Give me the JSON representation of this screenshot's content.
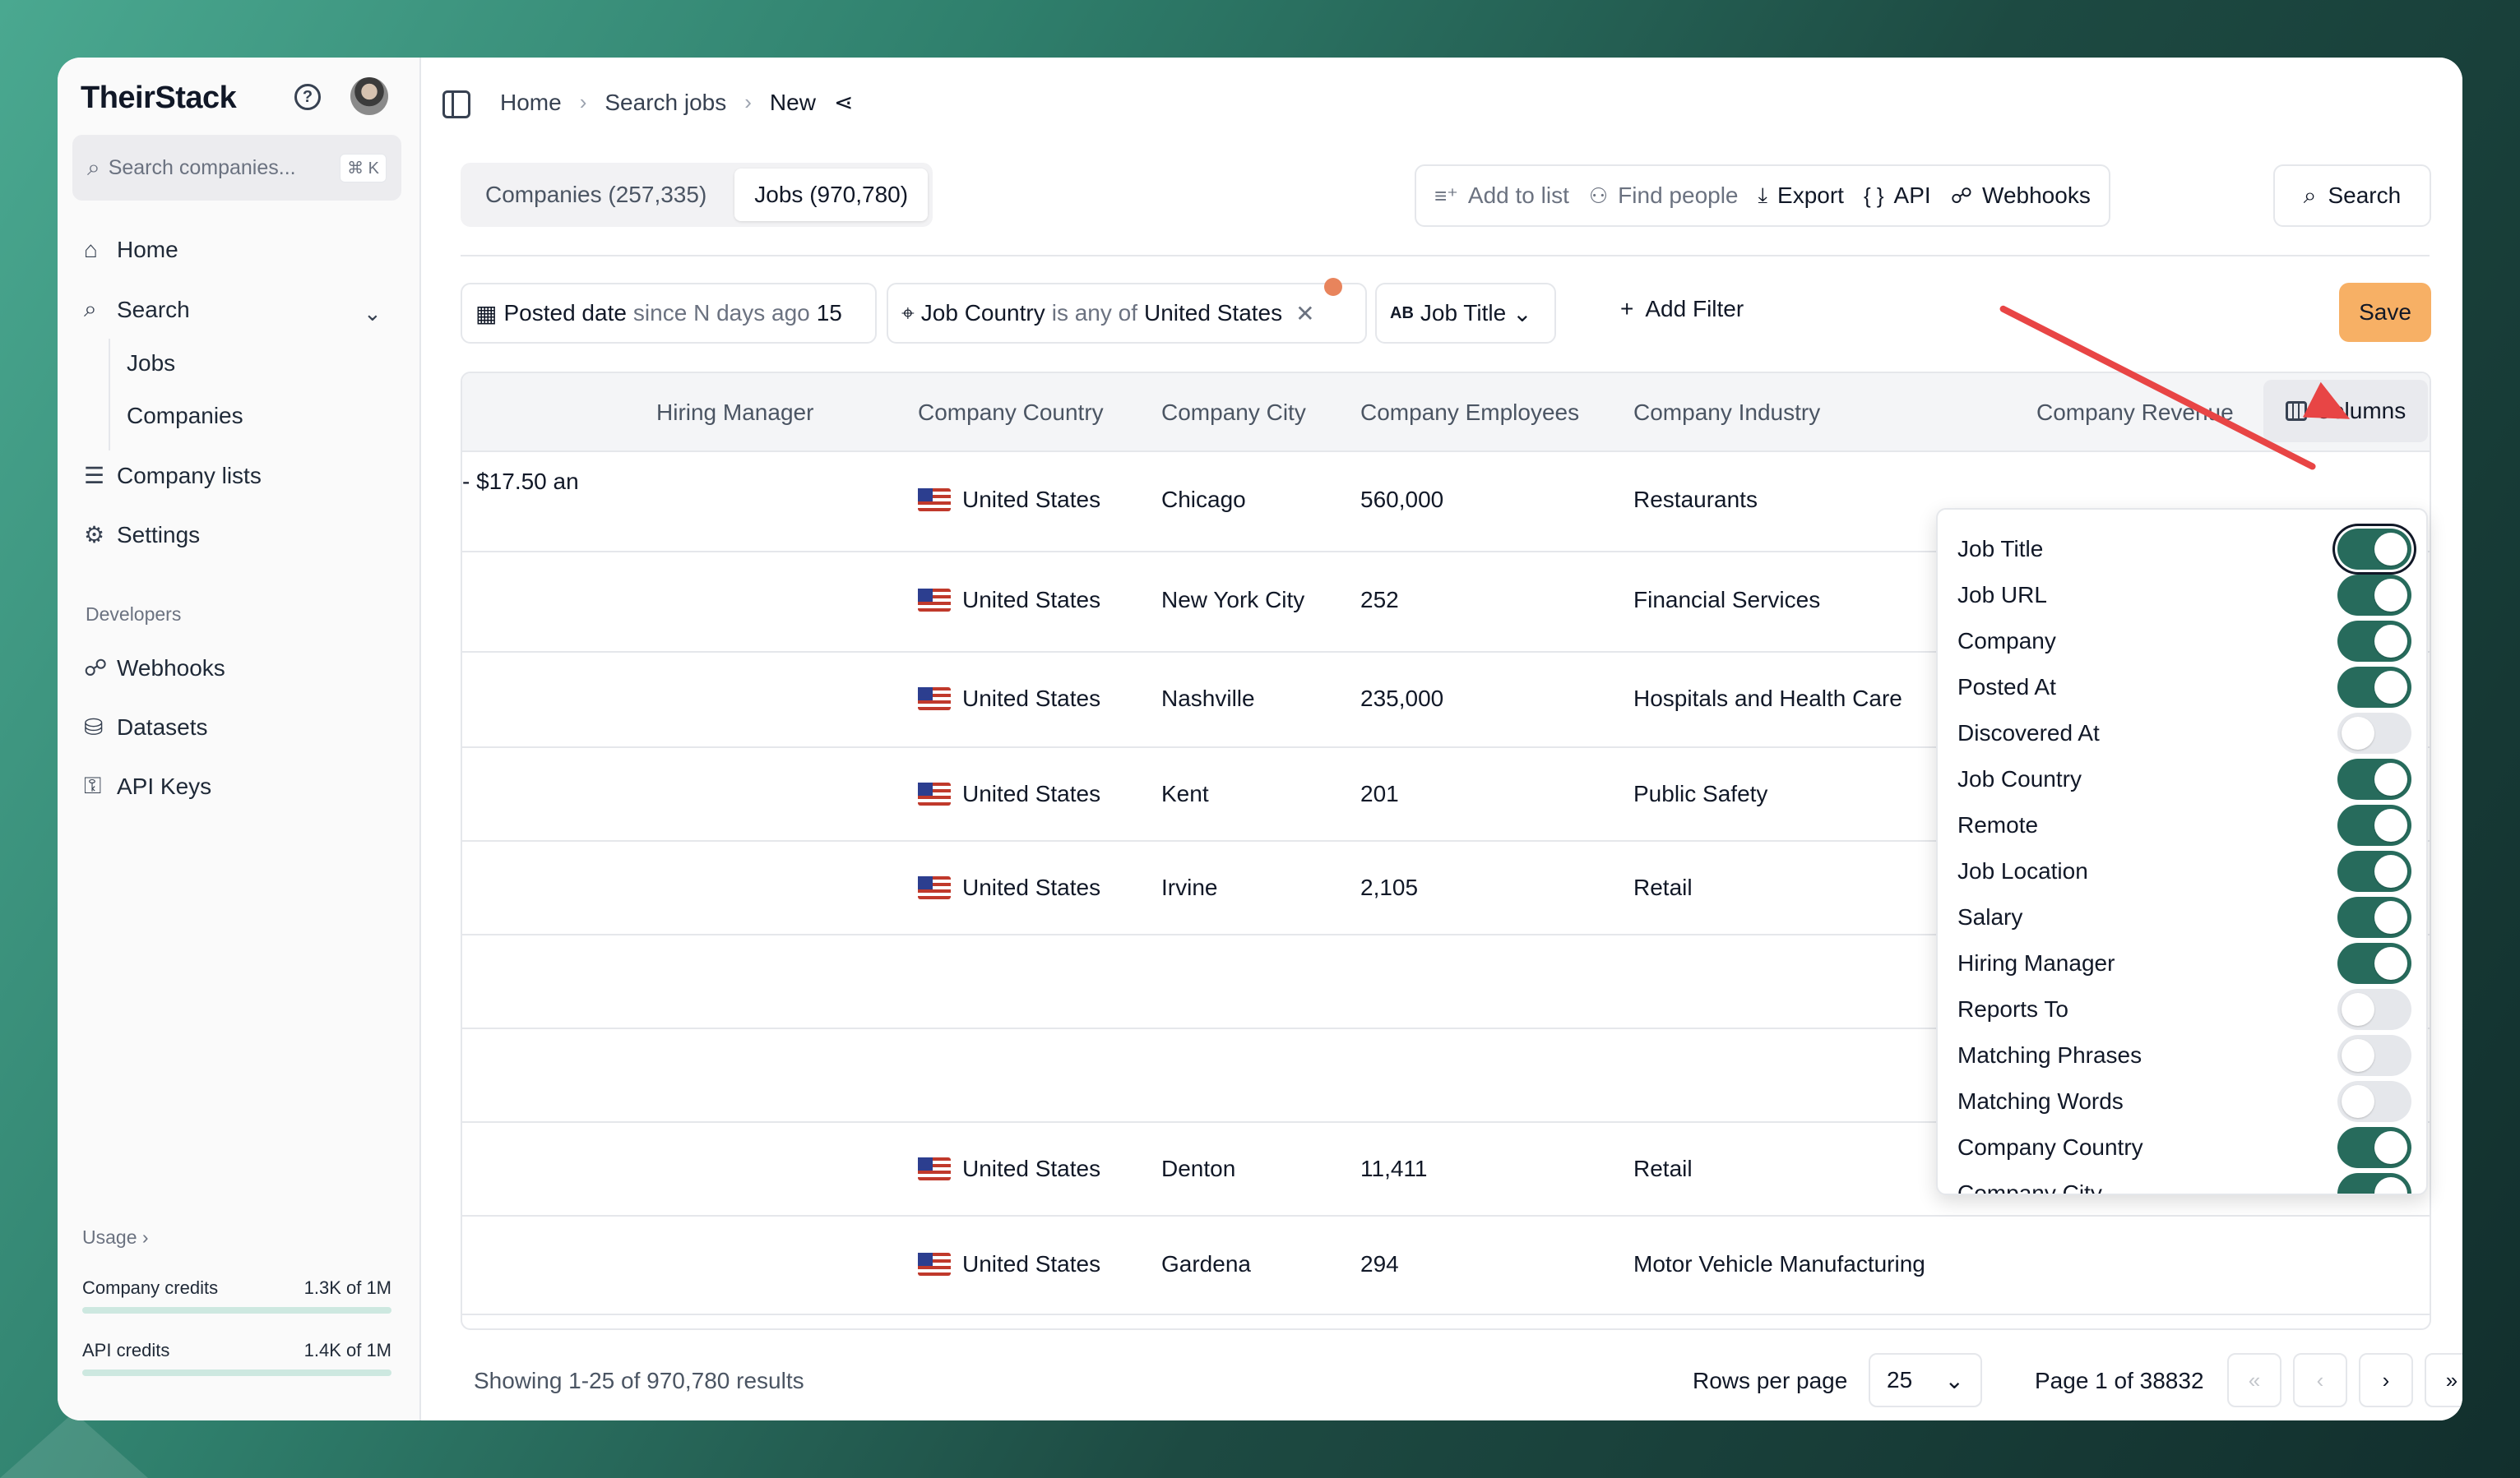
{
  "sidebar": {
    "brand": "TheirStack",
    "search_placeholder": "Search companies...",
    "search_shortcut": "⌘ K",
    "nav": {
      "home": "Home",
      "search": "Search",
      "jobs": "Jobs",
      "companies": "Companies",
      "company_lists": "Company lists",
      "settings": "Settings"
    },
    "developers_label": "Developers",
    "dev_nav": {
      "webhooks": "Webhooks",
      "datasets": "Datasets",
      "api_keys": "API Keys"
    },
    "usage_label": "Usage",
    "credits": [
      {
        "label": "Company credits",
        "value": "1.3K of 1M"
      },
      {
        "label": "API credits",
        "value": "1.4K of 1M"
      }
    ]
  },
  "breadcrumb": [
    "Home",
    "Search jobs",
    "New"
  ],
  "tabs": [
    {
      "label": "Companies (257,335)"
    },
    {
      "label": "Jobs (970,780)"
    }
  ],
  "actions": {
    "add_to_list": "Add to list",
    "find_people": "Find people",
    "export": "Export",
    "api": "API",
    "webhooks": "Webhooks",
    "search": "Search"
  },
  "filters": {
    "posted": {
      "field": "Posted date",
      "op": "since N days ago",
      "value": "15"
    },
    "country": {
      "field": "Job Country",
      "op": "is any of",
      "value": "United States"
    },
    "job_title": "Job Title",
    "add_filter": "Add Filter",
    "save": "Save"
  },
  "table": {
    "headers": [
      "Hiring Manager",
      "Company Country",
      "Company City",
      "Company Employees",
      "Company Industry",
      "Company Revenue"
    ],
    "columns_button": "Columns",
    "partial_cell": "- $17.50 an",
    "rows": [
      {
        "country": "United States",
        "city": "Chicago",
        "employees": "560,000",
        "industry": "Restaurants"
      },
      {
        "country": "United States",
        "city": "New York City",
        "employees": "252",
        "industry": "Financial Services"
      },
      {
        "country": "United States",
        "city": "Nashville",
        "employees": "235,000",
        "industry": "Hospitals and Health Care"
      },
      {
        "country": "United States",
        "city": "Kent",
        "employees": "201",
        "industry": "Public Safety"
      },
      {
        "country": "United States",
        "city": "Irvine",
        "employees": "2,105",
        "industry": "Retail"
      },
      {
        "country": "",
        "city": "",
        "employees": "",
        "industry": ""
      },
      {
        "country": "",
        "city": "",
        "employees": "",
        "industry": ""
      },
      {
        "country": "United States",
        "city": "Denton",
        "employees": "11,411",
        "industry": "Retail"
      },
      {
        "country": "United States",
        "city": "Gardena",
        "employees": "294",
        "industry": "Motor Vehicle Manufacturing"
      }
    ]
  },
  "columns_menu": [
    {
      "label": "Job Title",
      "on": true
    },
    {
      "label": "Job URL",
      "on": true
    },
    {
      "label": "Company",
      "on": true
    },
    {
      "label": "Posted At",
      "on": true
    },
    {
      "label": "Discovered At",
      "on": false
    },
    {
      "label": "Job Country",
      "on": true
    },
    {
      "label": "Remote",
      "on": true
    },
    {
      "label": "Job Location",
      "on": true
    },
    {
      "label": "Salary",
      "on": true
    },
    {
      "label": "Hiring Manager",
      "on": true
    },
    {
      "label": "Reports To",
      "on": false
    },
    {
      "label": "Matching Phrases",
      "on": false
    },
    {
      "label": "Matching Words",
      "on": false
    },
    {
      "label": "Company Country",
      "on": true
    },
    {
      "label": "Company City",
      "on": true
    }
  ],
  "footer": {
    "showing": "Showing 1-25 of 970,780 results",
    "rows_per_page_label": "Rows per page",
    "rows_per_page": "25",
    "page": "Page 1 of 38832"
  },
  "colors": {
    "accent": "#276b5c",
    "save": "#f7b065",
    "annotation_arrow": "#e84545"
  }
}
